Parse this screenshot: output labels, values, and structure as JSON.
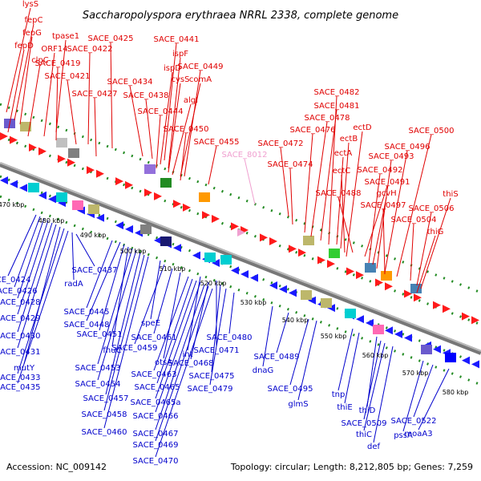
{
  "title": "Saccharopolyspora erythraea NRRL 2338, complete genome",
  "footer": {
    "accession": "Accession: NC_009142",
    "summary": "Topology: circular; Length: 8,212,805 bp; Genes: 7,259"
  },
  "colors": {
    "forward_label": "#e00000",
    "reverse_label": "#0000cc",
    "pseudo_label": "#f0a0d0",
    "backbone": "#999999",
    "tick_mark": "#228b22"
  },
  "scale_ticks": [
    "470 kbp",
    "480 kbp",
    "490 kbp",
    "500 kbp",
    "510 kbp",
    "520 kbp",
    "530 kbp",
    "540 kbp",
    "550 kbp",
    "560 kbp",
    "570 kbp",
    "580 kbp"
  ],
  "forward_genes": [
    "lysS",
    "fepC",
    "fepG",
    "fepD",
    "tpase1",
    "ORF14",
    "clpC",
    "SACE_0419",
    "SACE_0421",
    "SACE_0422",
    "SACE_0425",
    "SACE_0427",
    "SACE_0434",
    "SACE_0438",
    "ispD",
    "ispF",
    "SACE_0441",
    "cysS",
    "SACE_0444",
    "algI",
    "comA",
    "SACE_0449",
    "SACE_0450",
    "SACE_0455",
    "SACE_0472",
    "SACE_0474",
    "SACE_0476",
    "SACE_0478",
    "SACE_0481",
    "SACE_0482",
    "ectA",
    "ectB",
    "ectC",
    "ectD",
    "SACE_0488",
    "SACE_0491",
    "SACE_0492",
    "SACE_0493",
    "SACE_0496",
    "SACE_0497",
    "SACE_0500",
    "gcvH",
    "SACE_0504",
    "SACE_0506",
    "thiS",
    "thiG"
  ],
  "pseudo_genes": [
    "SACE_8012"
  ],
  "reverse_genes": [
    "SACE_0424",
    "SACE_0426",
    "SACE_0428",
    "SACE_0429",
    "SACE_0430",
    "SACE_0431",
    "mutY",
    "SACE_0433",
    "SACE_0435",
    "radA",
    "SACE_0437",
    "SACE_0445",
    "SACE_0448",
    "SACE_0451",
    "fhuC",
    "SACE_0453",
    "SACE_0454",
    "SACE_0457",
    "SACE_0458",
    "SACE_0460",
    "speE",
    "SACE_0461",
    "SACE_0459",
    "otsA",
    "SACE_0463",
    "SACE_0465",
    "SACE_0465a",
    "SACE_0466",
    "SACE_0467",
    "SACE_0469",
    "SACE_0470",
    "int",
    "SACE_0468",
    "SACE_0471",
    "SACE_0475",
    "SACE_0479",
    "SACE_0480",
    "dnaG",
    "SACE_0489",
    "SACE_0495",
    "glmS",
    "tnp",
    "thiE",
    "thiD",
    "SACE_0509",
    "thiC",
    "def",
    "pssA",
    "SACE_0522",
    "moaA3"
  ]
}
